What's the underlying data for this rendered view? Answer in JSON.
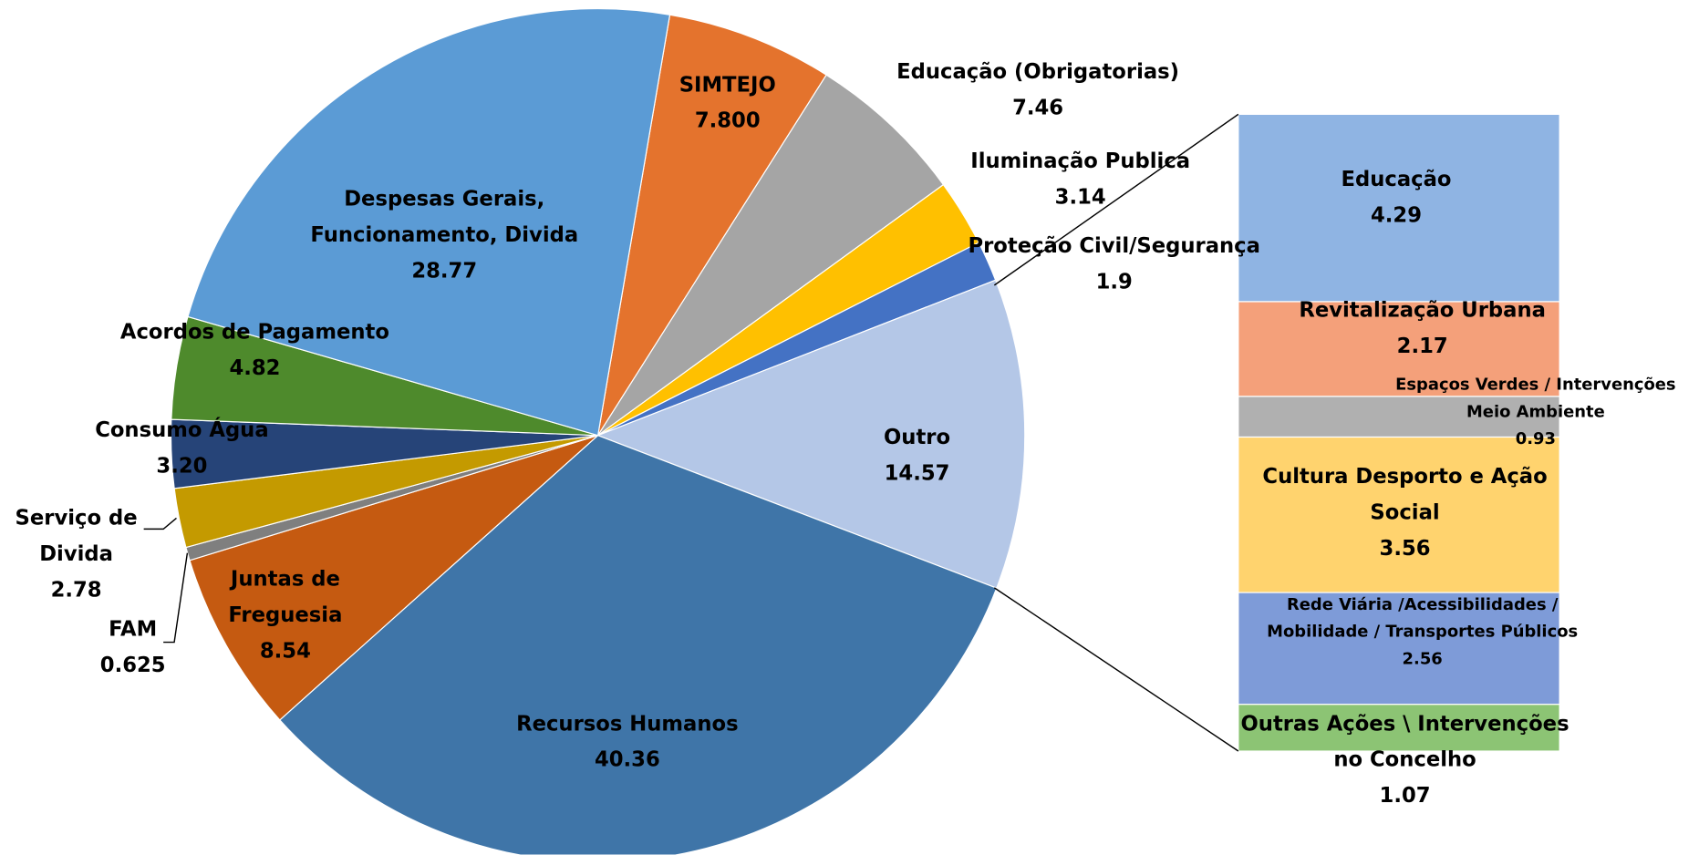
{
  "chart_data": {
    "type": "pie-of-bar",
    "categories": [
      "SIMTEJO",
      "Educação (Obrigatorias)",
      "Iluminação Publica",
      "Proteção Civil/Segurança",
      "Outro",
      "Recursos Humanos",
      "Juntas de Freguesia",
      "FAM",
      "Serviço de Divida",
      "Consumo Água",
      "Acordos de Pagamento",
      "Despesas Gerais, Funcionamento, Divida"
    ],
    "values": [
      7.8,
      7.46,
      3.14,
      1.9,
      14.57,
      40.36,
      8.54,
      0.625,
      2.78,
      3.2,
      4.82,
      28.77
    ],
    "value_labels": [
      "7.800",
      "7.46",
      "3.14",
      "1.9",
      "14.57",
      "40.36",
      "8.54",
      "0.625",
      "2.78",
      "3.20",
      "4.82",
      "28.77"
    ],
    "colors": [
      "#e4732d",
      "#a5a5a5",
      "#ffc000",
      "#4472c4",
      "#b4c7e7",
      "#3f75a8",
      "#c55a11",
      "#7f7f7f",
      "#c49a00",
      "#264478",
      "#4e8a2c",
      "#5b9bd5"
    ],
    "bar": {
      "categories": [
        "Educação",
        "Revitalização Urbana",
        "Espaços Verdes / Intervenções Meio Ambiente",
        "Cultura Desporto e Ação Social",
        "Rede Viária /Acessibilidades / Mobilidade / Transportes Públicos",
        "Outras Ações \\ Intervenções no Concelho"
      ],
      "values": [
        4.29,
        2.17,
        0.93,
        3.56,
        2.56,
        1.07
      ],
      "colors": [
        "#8fb4e3",
        "#f4a07a",
        "#b0b0b0",
        "#ffd36e",
        "#7e9bd8",
        "#8cc474"
      ]
    }
  }
}
